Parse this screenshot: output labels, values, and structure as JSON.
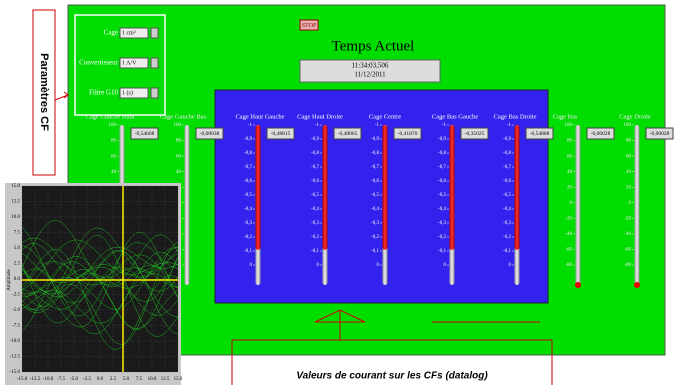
{
  "side_label": "Paramètres CF",
  "controls": [
    {
      "label": "Cage",
      "value": "1 cm²"
    },
    {
      "label": "Convertisseur",
      "value": "1 A/V"
    },
    {
      "label": "Filtre G10",
      "value": "1 (s)"
    }
  ],
  "stop_button": "STOP",
  "clock": {
    "title": "Temps Actuel",
    "time": "11:34:03,506",
    "date": "11/12/2011"
  },
  "outer_scale": [
    "100",
    "80",
    "60",
    "40",
    "20",
    "0",
    "-20",
    "-40",
    "-60",
    "-80"
  ],
  "inner_scale": [
    "-1",
    "-0,9",
    "-0,8",
    "-0,7",
    "-0,6",
    "-0,5",
    "-0,4",
    "-0,3",
    "-0,2",
    "-0,1",
    "0"
  ],
  "gauges": [
    {
      "label": "Cage Gauche Haut",
      "value": "-0,54608"
    },
    {
      "label": "Cage Gauche Bas",
      "value": "-0,00038"
    },
    {
      "label": "Cage Haut Gauche",
      "value": "-0,48815"
    },
    {
      "label": "Cage Haut Droite",
      "value": "-0,48065"
    },
    {
      "label": "Cage Centre",
      "value": "-0,41870"
    },
    {
      "label": "Cage Bas Gauche",
      "value": "-0,35025"
    },
    {
      "label": "Cage Bas Droite",
      "value": "-0,54888"
    },
    {
      "label": "Cage Bas",
      "value": "-0,00028"
    },
    {
      "label": "Cage Droite",
      "value": "-0,00028"
    }
  ],
  "scope": {
    "y_label": "Amplitude",
    "yticks": [
      "15.0",
      "12.5",
      "10.0",
      "7.5",
      "5.0",
      "2.5",
      "0.0",
      "-2.5",
      "-5.0",
      "-7.5",
      "-10.0",
      "-12.5",
      "-15.0"
    ],
    "xticks": [
      "-15.0",
      "-12.5",
      "-10.0",
      "-7.5",
      "-5.0",
      "-2.5",
      "0.0",
      "2.5",
      "5.0",
      "7.5",
      "10.0",
      "12.5",
      "15.0"
    ]
  },
  "annotation": "Valeurs de courant sur les CFs (datalog)"
}
